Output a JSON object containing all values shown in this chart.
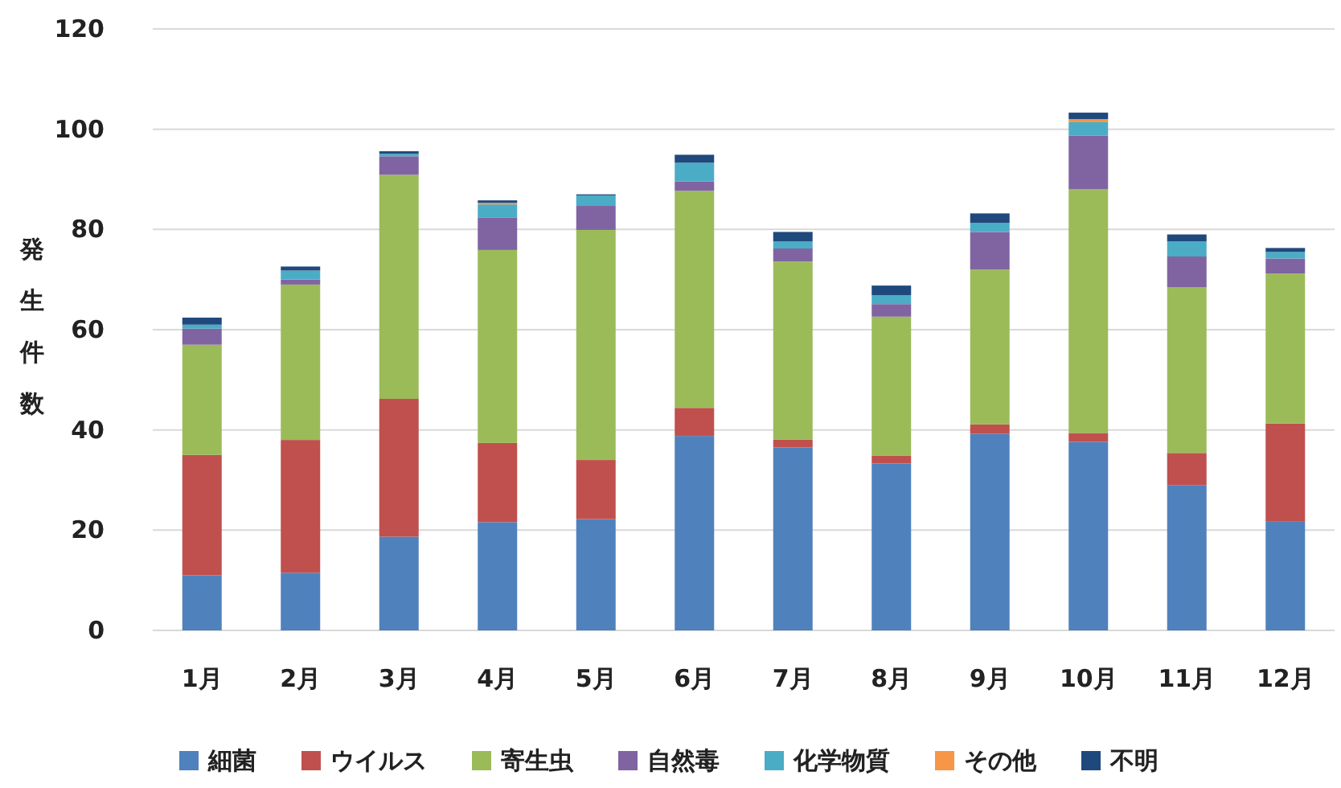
{
  "chart_data": {
    "type": "bar",
    "stacked": true,
    "ylabel": "発生件数",
    "categories": [
      "1月",
      "2月",
      "3月",
      "4月",
      "5月",
      "6月",
      "7月",
      "8月",
      "9月",
      "10月",
      "11月",
      "12月"
    ],
    "series": [
      {
        "name": "細菌",
        "color": "#4f81bd",
        "values": [
          11,
          11.5,
          18.7,
          21.6,
          22.2,
          38.8,
          36.5,
          33.3,
          39.2,
          37.6,
          29,
          21.8
        ]
      },
      {
        "name": "ウイルス",
        "color": "#c0504d",
        "values": [
          24,
          26.5,
          27.5,
          15.8,
          11.8,
          5.6,
          1.6,
          1.6,
          1.9,
          1.8,
          6.4,
          19.5
        ]
      },
      {
        "name": "寄生虫",
        "color": "#9bbb59",
        "values": [
          22,
          31,
          44.7,
          38.5,
          45.9,
          43.3,
          35.5,
          27.7,
          30.9,
          48.6,
          33.1,
          29.9
        ]
      },
      {
        "name": "自然毒",
        "color": "#8064a2",
        "values": [
          3.2,
          1,
          3.7,
          6.5,
          4.8,
          1.9,
          2.6,
          2.5,
          7.5,
          10.7,
          6.1,
          3
        ]
      },
      {
        "name": "化学物質",
        "color": "#4bacc6",
        "values": [
          0.8,
          1.8,
          0.5,
          2.6,
          2.1,
          3.7,
          1.4,
          1.8,
          1.8,
          2.7,
          3,
          1.3
        ]
      },
      {
        "name": "その他",
        "color": "#f79646",
        "values": [
          0,
          0,
          0,
          0.3,
          0,
          0,
          0,
          0,
          0,
          0.6,
          0,
          0
        ]
      },
      {
        "name": "不明",
        "color": "#1f497d",
        "values": [
          1.4,
          0.8,
          0.5,
          0.5,
          0.2,
          1.6,
          1.9,
          1.9,
          1.9,
          1.3,
          1.4,
          0.8
        ]
      }
    ],
    "ylim": [
      0,
      120
    ],
    "yticks": [
      0,
      20,
      40,
      60,
      80,
      100,
      120
    ],
    "grid": "y",
    "legend": "bottom"
  }
}
